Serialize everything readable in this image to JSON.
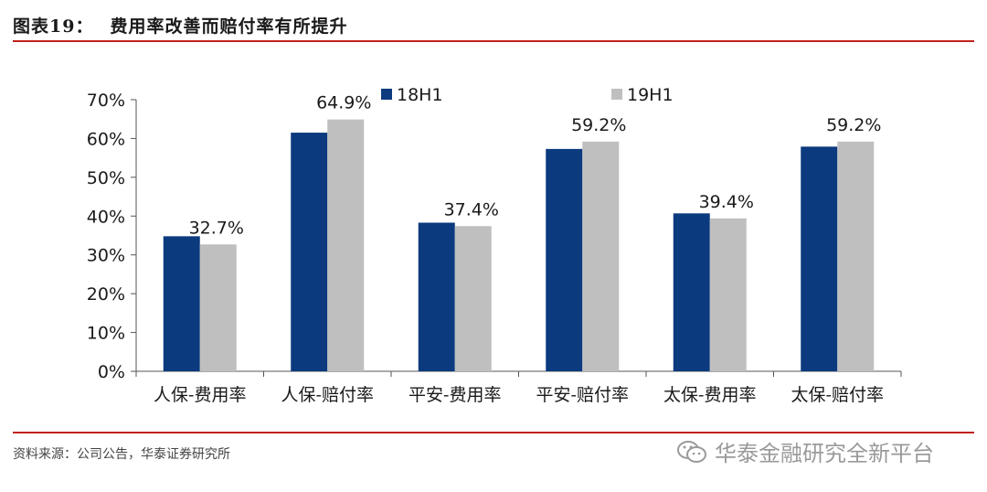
{
  "header": {
    "label": "图表19：",
    "text": "费用率改善而赔付率有所提升"
  },
  "source": "资料来源：公司公告，华泰证券研究所",
  "watermark": {
    "icon": "wechat-icon",
    "text": "华泰金融研究全新平台"
  },
  "colors": {
    "series1": "#0b3a7e",
    "series2": "#bfbfbf",
    "accent": "#c0211c"
  },
  "chart_data": {
    "type": "bar",
    "categories": [
      "人保-费用率",
      "人保-赔付率",
      "平安-费用率",
      "平安-赔付率",
      "太保-费用率",
      "太保-赔付率"
    ],
    "series": [
      {
        "name": "18H1",
        "values": [
          34.8,
          61.5,
          38.3,
          57.3,
          40.7,
          57.9
        ]
      },
      {
        "name": "19H1",
        "values": [
          32.7,
          64.9,
          37.4,
          59.2,
          39.4,
          59.2
        ]
      }
    ],
    "data_labels": [
      "32.7%",
      "64.9%",
      "37.4%",
      "59.2%",
      "39.4%",
      "59.2%"
    ],
    "yticks": [
      "0%",
      "10%",
      "20%",
      "30%",
      "40%",
      "50%",
      "60%",
      "70%"
    ],
    "ylim": [
      0,
      70
    ],
    "legend_position": "top",
    "grid": false
  }
}
